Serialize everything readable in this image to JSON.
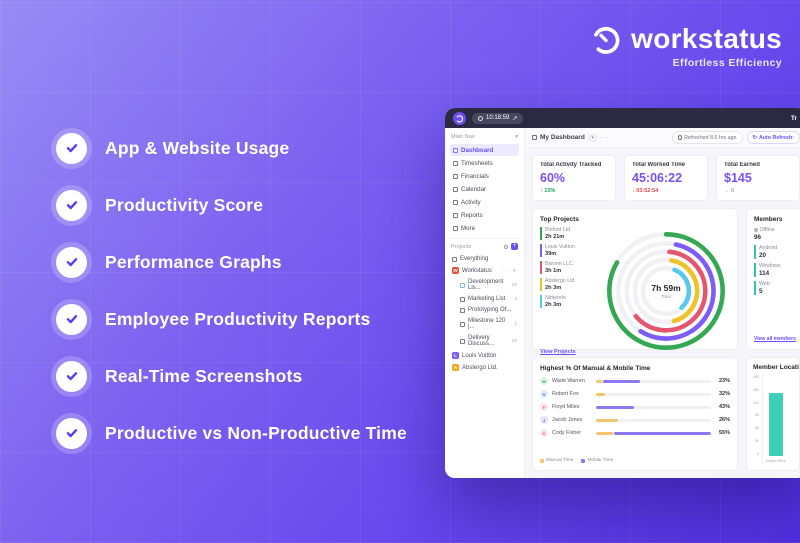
{
  "branding": {
    "name": "workstatus",
    "tagline": "Effortless Efficiency"
  },
  "features": {
    "items": [
      {
        "label": "App & Website Usage"
      },
      {
        "label": "Productivity Score"
      },
      {
        "label": "Performance Graphs"
      },
      {
        "label": "Employee Productivity Reports"
      },
      {
        "label": "Real-Time Screenshots"
      },
      {
        "label": "Productive vs Non-Productive Time"
      }
    ]
  },
  "dashboard": {
    "topbar": {
      "time": "10:18:59",
      "right_text": "Tr"
    },
    "toolbar": {
      "title": "My Dashboard",
      "refreshed": "Refreshed 8.5 hrs ago",
      "auto_refresh_label": "Auto Refresh:"
    },
    "sidebar": {
      "main_nav_label": "Main Nav",
      "nav_items": [
        {
          "label": "Dashboard"
        },
        {
          "label": "Timesheets"
        },
        {
          "label": "Financials"
        },
        {
          "label": "Calendar"
        },
        {
          "label": "Activity"
        },
        {
          "label": "Reports"
        },
        {
          "label": "More"
        }
      ],
      "projects_label": "Projects",
      "everything_label": "Everything",
      "workspace_name": "Workstatus",
      "workspace_initial": "W",
      "project_items": [
        {
          "label": "Development Lis...",
          "count": "18"
        },
        {
          "label": "Marketing List",
          "count": "3"
        },
        {
          "label": "Prototyping Of...",
          "count": ""
        },
        {
          "label": "Milestone 120 |...",
          "count": "1"
        },
        {
          "label": "Delivery Discuss...",
          "count": "18"
        }
      ],
      "clients": [
        {
          "name": "Louis Vuitton",
          "initial": "L",
          "color": "#7c5cfa"
        },
        {
          "name": "Abstergo Ltd.",
          "initial": "A",
          "color": "#f5a623"
        }
      ]
    },
    "stats": [
      {
        "label": "Total Activity Tracked",
        "value": "60%",
        "delta": "↑ 15%"
      },
      {
        "label": "Total Worked Time",
        "value": "45:06:22",
        "delta": "↓ 03:52:54"
      },
      {
        "label": "Total Earned",
        "value": "$145",
        "delta": "→ 0"
      }
    ],
    "top_projects": {
      "title": "Top Projects",
      "link_label": "View Projects",
      "projects": [
        {
          "name": "Binford Ltd.",
          "time": "2h 21m",
          "color": "#34a853"
        },
        {
          "name": "Louis Vuitton",
          "time": "39m",
          "color": "#7c5cfa"
        },
        {
          "name": "Barone LLC.",
          "time": "3h 1m",
          "color": "#e5556e"
        },
        {
          "name": "Abstergo Ltd",
          "time": "2h 3m",
          "color": "#f0c229"
        },
        {
          "name": "Nintendo",
          "time": "2h 3m",
          "color": "#56c8f2"
        }
      ],
      "donut": {
        "center_value": "7h 59m",
        "center_label": "Total",
        "rings": [
          {
            "name": "Binford Ltd.",
            "color": "#34a853",
            "radius": 62,
            "start": -90,
            "sweep": 300
          },
          {
            "name": "Louis Vuitton",
            "color": "#7c5cfa",
            "radius": 52,
            "start": -78,
            "sweep": 200
          },
          {
            "name": "Barone LLC.",
            "color": "#e5556e",
            "radius": 43,
            "start": -85,
            "sweep": 225
          },
          {
            "name": "Abstergo Ltd",
            "color": "#f0c229",
            "radius": 34,
            "start": -80,
            "sweep": 155
          },
          {
            "name": "Nintendo",
            "color": "#56c8f2",
            "radius": 25,
            "start": -68,
            "sweep": 115
          }
        ]
      }
    },
    "members": {
      "title": "Members",
      "offline_label": "Offline",
      "offline_value": "96",
      "platforms": [
        {
          "name": "Android",
          "value": "20"
        },
        {
          "name": "Windows",
          "value": "114"
        },
        {
          "name": "Web",
          "value": "5"
        }
      ],
      "link_label": "View all members"
    },
    "manual_mobile": {
      "title": "Highest % Of Manual & Mobile Time",
      "rows": [
        {
          "name": "Wade Warren",
          "initial": "W",
          "pct": "23%",
          "manual_pct": 5,
          "mobile_pct": 32,
          "avatar_bg": "#dff3e5",
          "avatar_fg": "#2fa45c"
        },
        {
          "name": "Robert Fox",
          "initial": "R",
          "pct": "32%",
          "manual_pct": 8,
          "mobile_pct": 0,
          "avatar_bg": "#e2ecfd",
          "avatar_fg": "#3b74e0"
        },
        {
          "name": "Floyd Miles",
          "initial": "F",
          "pct": "43%",
          "manual_pct": 0,
          "mobile_pct": 33,
          "avatar_bg": "#fde4e7",
          "avatar_fg": "#e4597a"
        },
        {
          "name": "Jacob Jones",
          "initial": "J",
          "pct": "26%",
          "manual_pct": 19,
          "mobile_pct": 0,
          "avatar_bg": "#e4e4fb",
          "avatar_fg": "#5b5bd6"
        },
        {
          "name": "Cody Fisher",
          "initial": "C",
          "pct": "55%",
          "manual_pct": 15,
          "mobile_pct": 84,
          "avatar_bg": "#fbe2ef",
          "avatar_fg": "#d6408a"
        }
      ],
      "legend": [
        {
          "label": "Manual Time",
          "color": "#f3c66b"
        },
        {
          "label": "Mobile Time",
          "color": "#8b78f2"
        }
      ]
    },
    "member_location": {
      "title": "Member Location",
      "y_ticks": [
        180,
        150,
        120,
        90,
        60,
        30,
        0
      ],
      "y_max": 180,
      "bars": [
        {
          "label": "Noida Office",
          "value": 140,
          "color": "#3ecfb7"
        }
      ]
    }
  },
  "colors": {
    "accent": "#6c4ef5",
    "green": "#18a558",
    "red": "#e5484d",
    "teal": "#35c4ab"
  }
}
